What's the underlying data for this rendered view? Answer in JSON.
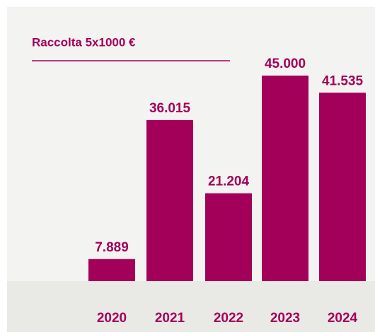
{
  "chart_data": {
    "type": "bar",
    "title": "Raccolta 5x1000 €",
    "categories": [
      "2020",
      "2021",
      "2022",
      "2023",
      "2024"
    ],
    "values": [
      7889,
      36015,
      21204,
      45000,
      41535
    ],
    "value_labels": [
      "7.889",
      "36.015",
      "21.204",
      "45.000",
      "41.535"
    ],
    "color": "#a3005a"
  }
}
